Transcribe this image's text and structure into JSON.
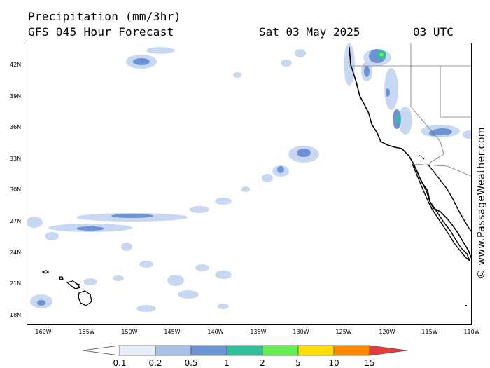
{
  "header": {
    "title": "Precipitation (mm/3hr)",
    "subtitle": "GFS 045 Hour Forecast",
    "date": "Sat 03 May 2025",
    "time": "03 UTC"
  },
  "copyright": "© www.PassageWeather.com",
  "axes": {
    "lat_labels": [
      "42N",
      "39N",
      "36N",
      "33N",
      "30N",
      "27N",
      "24N",
      "21N",
      "18N"
    ],
    "lon_labels": [
      "160W",
      "155W",
      "150W",
      "145W",
      "140W",
      "135W",
      "130W",
      "125W",
      "120W",
      "115W",
      "110W"
    ]
  },
  "legend": {
    "labels": [
      "0.1",
      "0.2",
      "0.5",
      "1",
      "2",
      "5",
      "10",
      "15"
    ],
    "colors": [
      "#ffffff",
      "#e6edf8",
      "#a7c0e6",
      "#6b93d6",
      "#2fbf9a",
      "#66ee55",
      "#ffdd00",
      "#ff8a00",
      "#e83a3a"
    ]
  }
}
